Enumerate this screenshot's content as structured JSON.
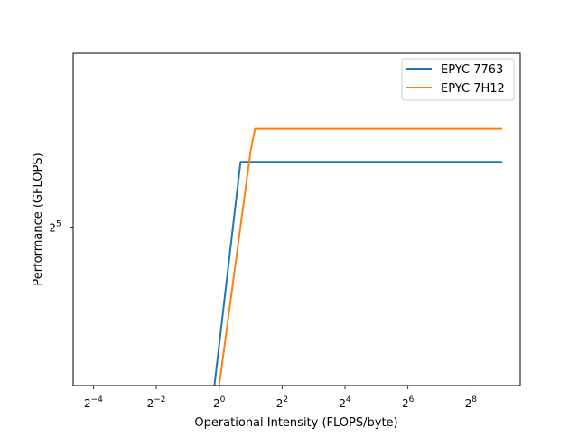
{
  "chart_data": {
    "type": "line",
    "title": "",
    "xlabel": "Operational Intensity (FLOPS/byte)",
    "ylabel": "Performance (GFLOPS)",
    "xscale": "log2",
    "yscale": "log2",
    "xlim": [
      0.04,
      760
    ],
    "ylim": [
      10.2,
      112
    ],
    "xticks": [
      {
        "value": 0.0625,
        "base": "2",
        "exp": "−4"
      },
      {
        "value": 0.25,
        "base": "2",
        "exp": "−2"
      },
      {
        "value": 1,
        "base": "2",
        "exp": "0"
      },
      {
        "value": 4,
        "base": "2",
        "exp": "2"
      },
      {
        "value": 16,
        "base": "2",
        "exp": "4"
      },
      {
        "value": 64,
        "base": "2",
        "exp": "6"
      },
      {
        "value": 256,
        "base": "2",
        "exp": "8"
      }
    ],
    "yticks": [
      {
        "value": 32,
        "base": "2",
        "exp": "5"
      }
    ],
    "legend_position": "top-right",
    "series": [
      {
        "name": "EPYC 7763",
        "color": "#1f77b4",
        "x": [
          0.9,
          1.6,
          512
        ],
        "y": [
          10.2,
          51.2,
          51.2
        ]
      },
      {
        "name": "EPYC 7H12",
        "color": "#ff7f0e",
        "x": [
          1.0,
          2.0,
          2.2,
          512
        ],
        "y": [
          10.2,
          55.5,
          65,
          65
        ]
      }
    ]
  }
}
